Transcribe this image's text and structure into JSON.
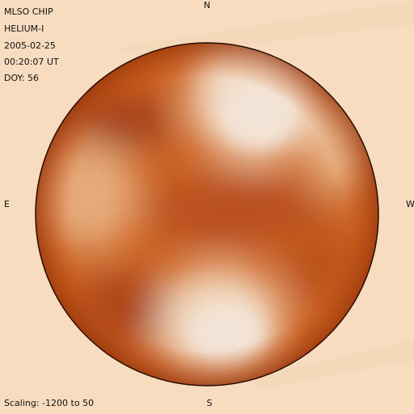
{
  "header": {
    "lines": [
      "MLSO CHIP",
      "HELIUM-I",
      "2005-02-25",
      "00:20:07 UT",
      "DOY: 56"
    ]
  },
  "compass": {
    "north": "N",
    "east": "E",
    "west": "W",
    "south": "S"
  },
  "footer": {
    "scaling": "Scaling: -1200 to 50"
  }
}
